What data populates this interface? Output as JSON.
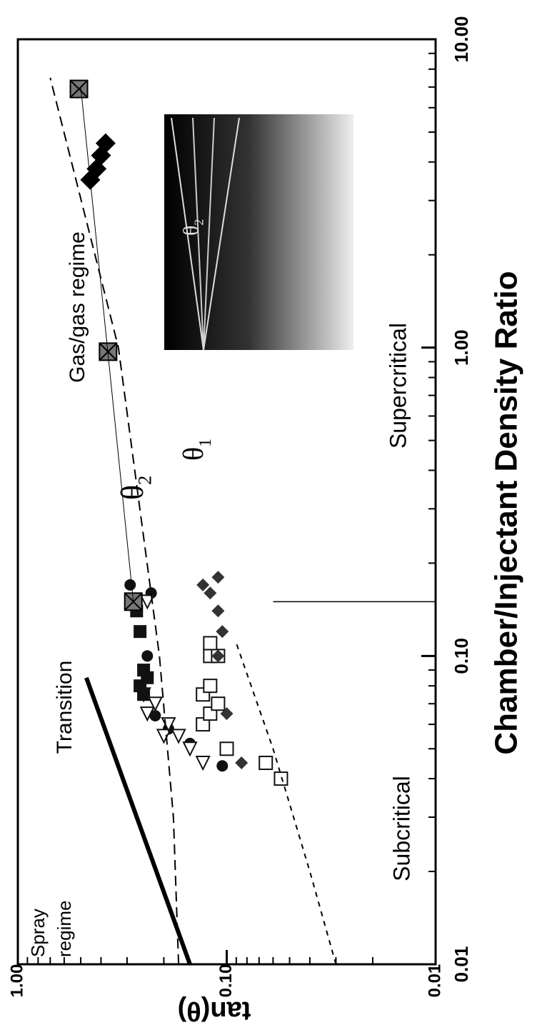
{
  "chart_data": {
    "type": "scatter",
    "x_label": "Chamber/Injectant Density Ratio",
    "y_label": "tan(θ)",
    "xlog": true,
    "ylog": true,
    "xlim": [
      0.01,
      10
    ],
    "ylim": [
      0.01,
      1
    ],
    "xticks": [
      {
        "value": 0.01,
        "label": "0.01"
      },
      {
        "value": 0.1,
        "label": "0.10"
      },
      {
        "value": 1,
        "label": "1.00"
      },
      {
        "value": 10,
        "label": "10.00"
      }
    ],
    "yticks": [
      {
        "value": 0.01,
        "label": "0.01"
      },
      {
        "value": 0.1,
        "label": "0.10"
      },
      {
        "value": 1,
        "label": "1.00"
      }
    ],
    "series": [
      {
        "marker": "circle-filled",
        "color": "#111",
        "x": [
          0.044,
          0.052,
          0.058,
          0.064,
          0.1,
          0.16,
          0.17
        ],
        "y": [
          0.105,
          0.15,
          0.19,
          0.22,
          0.24,
          0.23,
          0.29
        ]
      },
      {
        "marker": "triangle-open",
        "color": "#111",
        "x": [
          0.045,
          0.05,
          0.055,
          0.055,
          0.06,
          0.065,
          0.07,
          0.075,
          0.15
        ],
        "y": [
          0.13,
          0.15,
          0.17,
          0.2,
          0.19,
          0.24,
          0.22,
          0.25,
          0.24
        ]
      },
      {
        "marker": "square-filled",
        "color": "#111",
        "x": [
          0.075,
          0.08,
          0.085,
          0.09,
          0.12,
          0.14
        ],
        "y": [
          0.25,
          0.26,
          0.24,
          0.25,
          0.26,
          0.27
        ]
      },
      {
        "marker": "square-open",
        "color": "#111",
        "x": [
          0.04,
          0.045,
          0.05,
          0.06,
          0.065,
          0.07,
          0.075,
          0.08,
          0.1,
          0.1,
          0.11
        ],
        "y": [
          0.055,
          0.065,
          0.1,
          0.13,
          0.12,
          0.11,
          0.13,
          0.12,
          0.12,
          0.11,
          0.12
        ]
      },
      {
        "marker": "diamond-filled",
        "color": "#333",
        "x": [
          0.045,
          0.065,
          0.1,
          0.12,
          0.14,
          0.16,
          0.17,
          0.18
        ],
        "y": [
          0.085,
          0.1,
          0.11,
          0.105,
          0.11,
          0.12,
          0.13,
          0.11
        ]
      },
      {
        "marker": "diamond-filled",
        "color": "#000",
        "x": [
          3.5,
          3.8,
          4.2,
          4.6
        ],
        "y": [
          0.45,
          0.42,
          0.4,
          0.38
        ]
      },
      {
        "marker": "square-cross",
        "color": "#777",
        "x": [
          0.15,
          0.97,
          6.9
        ],
        "y": [
          0.28,
          0.37,
          0.51
        ]
      },
      {
        "marker": "line",
        "color": "#000",
        "width": 1,
        "x": [
          0.15,
          7
        ],
        "y": [
          0.28,
          0.5
        ]
      },
      {
        "marker": "line",
        "color": "#000",
        "width": 2,
        "dash": "14 8",
        "x": [
          0.01,
          0.03,
          0.1,
          1,
          7.5
        ],
        "y": [
          0.17,
          0.18,
          0.21,
          0.33,
          0.7
        ]
      },
      {
        "marker": "line",
        "color": "#000",
        "width": 6,
        "x": [
          0.01,
          0.085
        ],
        "y": [
          0.15,
          0.47
        ]
      },
      {
        "marker": "line",
        "color": "#000",
        "width": 2,
        "dash": "7 7",
        "x": [
          0.01,
          0.02,
          0.05,
          0.11
        ],
        "y": [
          0.03,
          0.04,
          0.06,
          0.09
        ]
      },
      {
        "marker": "line",
        "color": "#000",
        "width": 1.5,
        "x": [
          0.15,
          0.15
        ],
        "y": [
          0.06,
          0.01
        ]
      }
    ],
    "annotations": [
      "Spray",
      "regime",
      "Transition",
      "Gas/gas regime",
      "Subcritical",
      "Supercritical"
    ],
    "theta_labels": [
      {
        "symbol": "θ",
        "sub": "2"
      },
      {
        "symbol": "θ",
        "sub": "1"
      },
      {
        "symbol": "θ",
        "sub": "2"
      }
    ]
  }
}
